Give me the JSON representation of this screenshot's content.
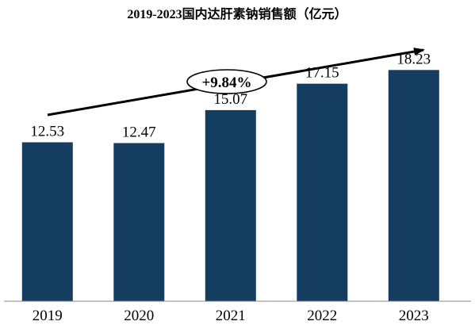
{
  "chart_data": {
    "type": "bar",
    "title": "2019-2023国内达肝素钠销售额（亿元）",
    "categories": [
      "2019",
      "2020",
      "2021",
      "2022",
      "2023"
    ],
    "values": [
      12.53,
      12.47,
      15.07,
      17.15,
      18.23
    ],
    "value_labels": [
      "12.53",
      "12.47",
      "15.07",
      "17.15",
      "18.23"
    ],
    "ylim": [
      0,
      21
    ],
    "grid": false,
    "legend": "none",
    "annotation": "+9.84%",
    "colors": {
      "bar": "#143d5f",
      "text": "#000000"
    }
  }
}
